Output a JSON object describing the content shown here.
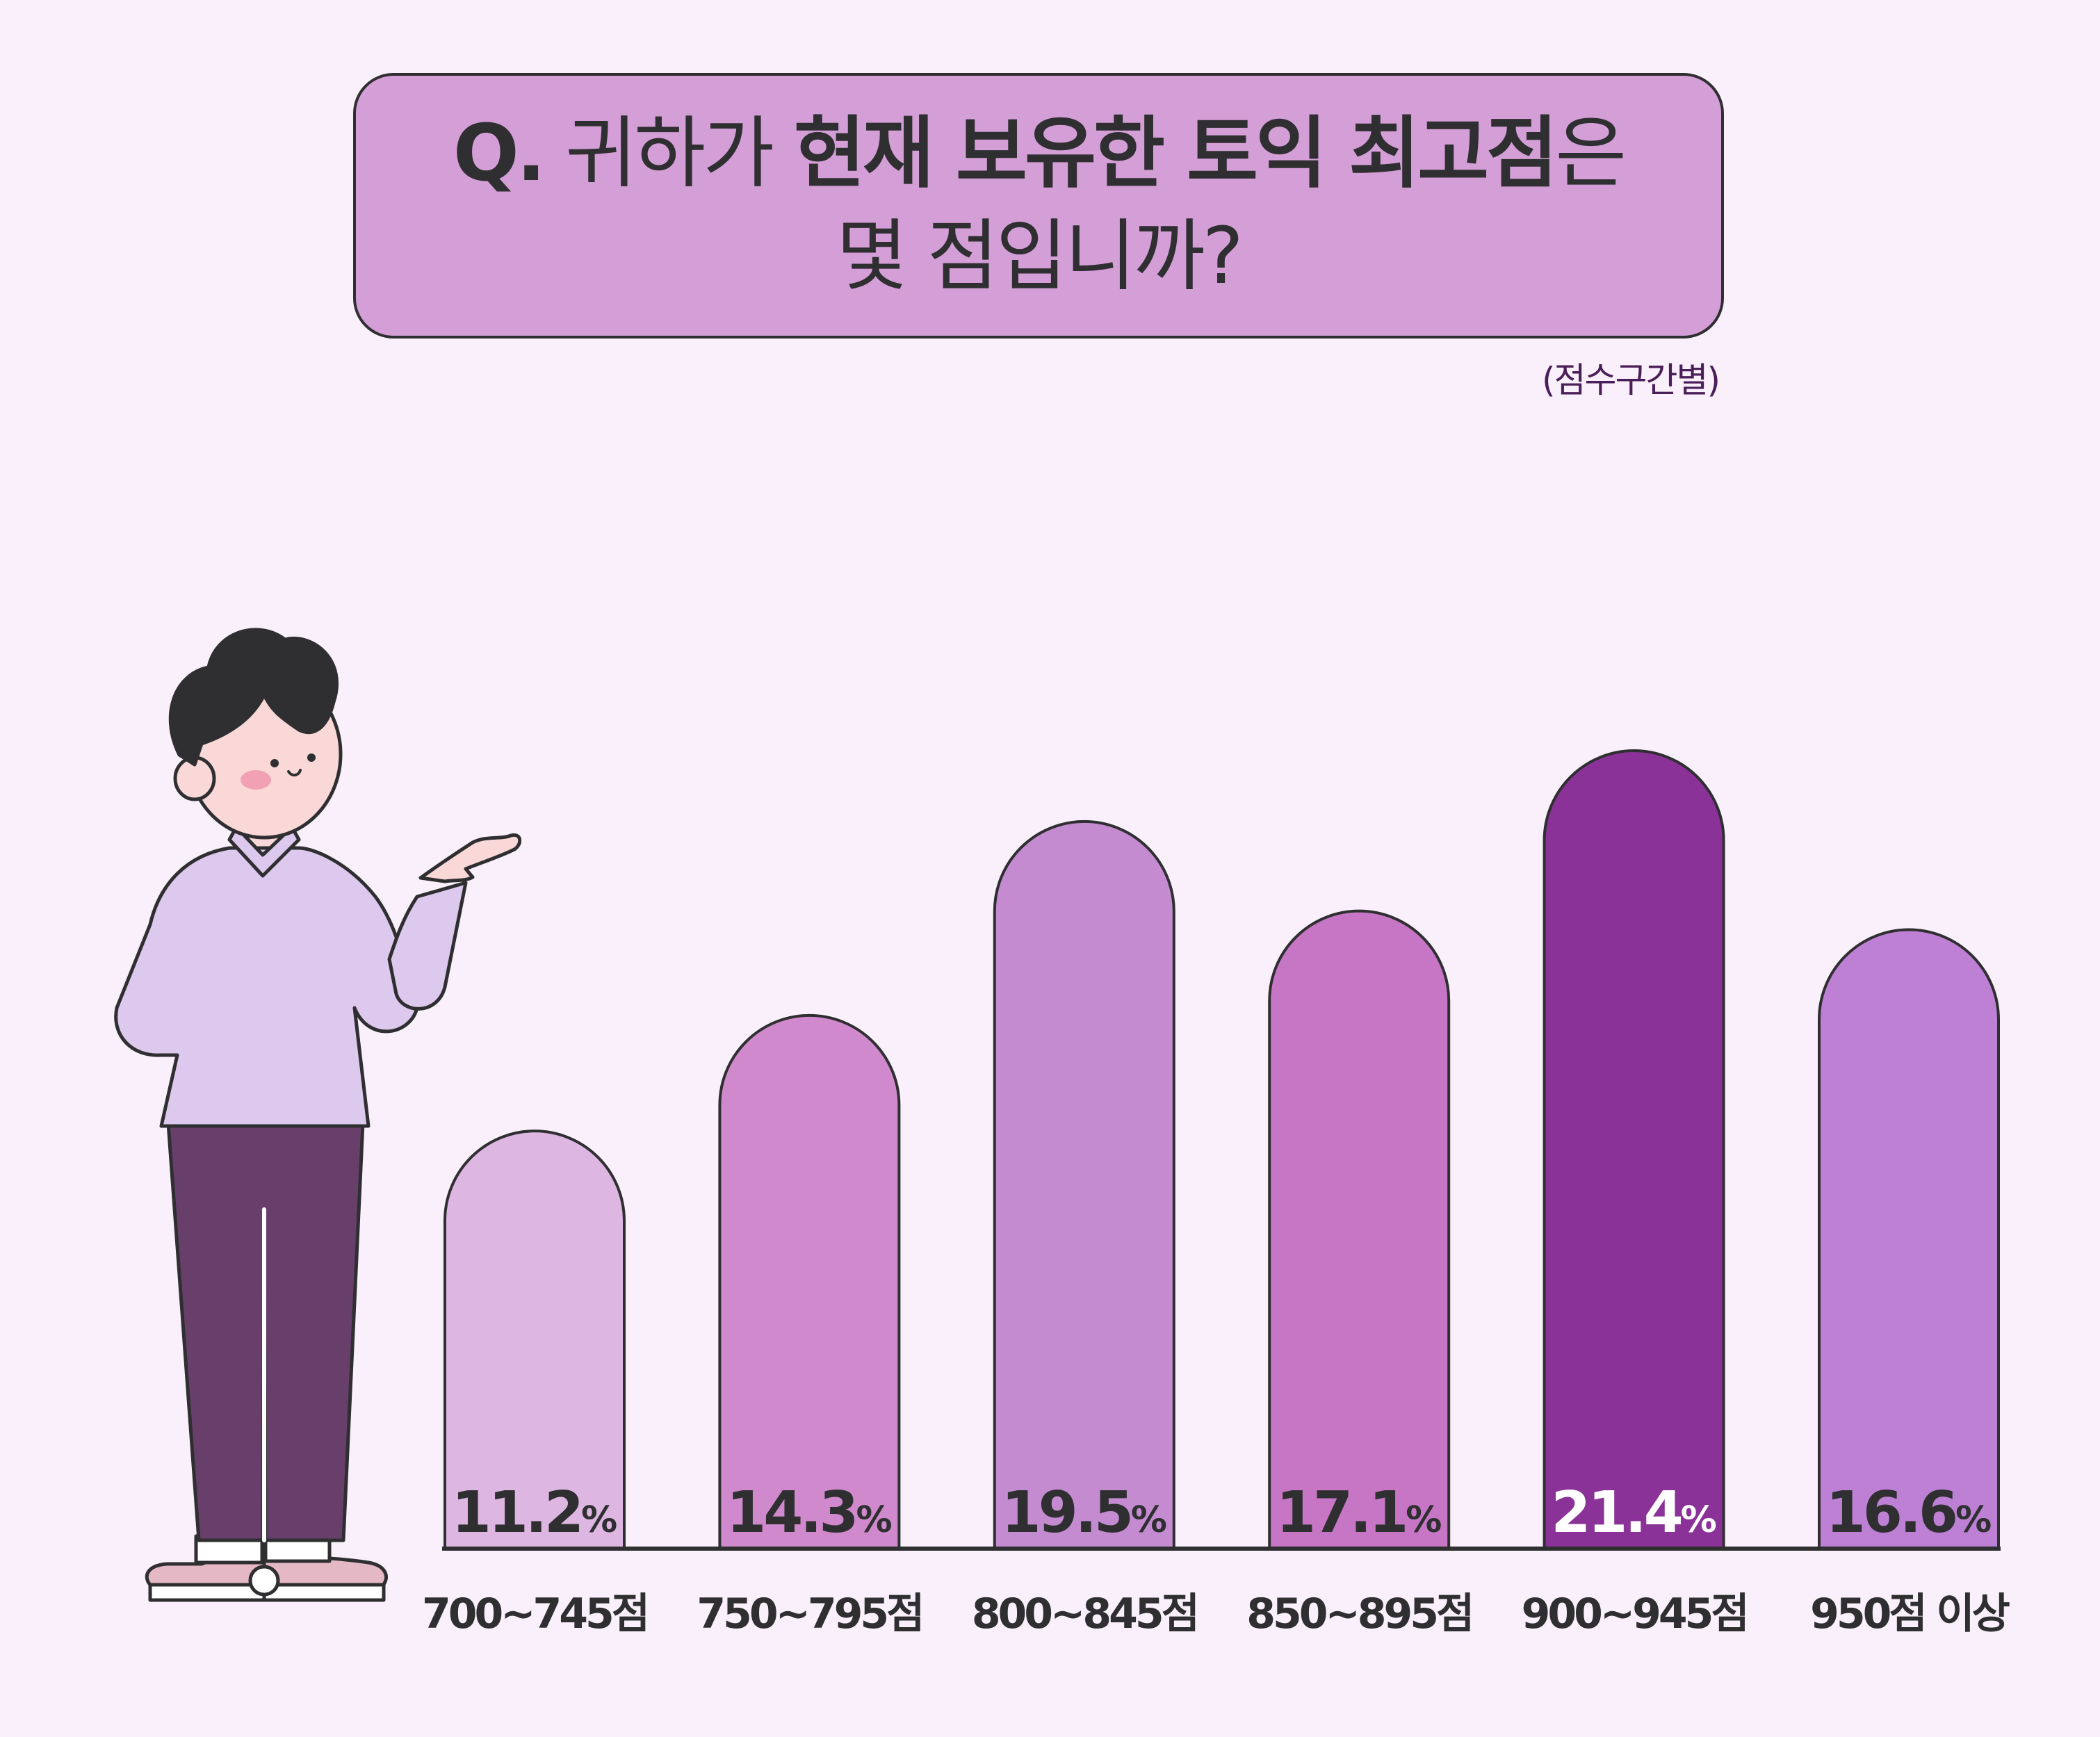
{
  "header": {
    "q_mark": "Q.",
    "line1_normal": "귀하가 ",
    "line1_bold": "현재 보유한 토익 최고점",
    "line1_suffix": "은",
    "line2": "몇 점입니까?"
  },
  "subtitle": "(점수구간별)",
  "colors": {
    "background": "#FAF0FB",
    "title_box": "#D49ED7",
    "outline": "#2F2F31",
    "highlight_bar": "#8A3297"
  },
  "chart_data": {
    "type": "bar",
    "title": "Q. 귀하가 현재 보유한 토익 최고점은 몇 점입니까?",
    "subtitle": "(점수구간별)",
    "categories": [
      "700~745점",
      "750~795점",
      "800~845점",
      "850~895점",
      "900~945점",
      "950점 이상"
    ],
    "values": [
      11.2,
      14.3,
      19.5,
      17.1,
      21.4,
      16.6
    ],
    "value_labels": [
      "11.2",
      "14.3",
      "19.5",
      "17.1",
      "21.4",
      "16.6"
    ],
    "unit": "%",
    "bar_colors": [
      "#DEB6E2",
      "#CF89CC",
      "#C58BD1",
      "#C776C5",
      "#8A3297",
      "#BD80D4"
    ],
    "label_colors": [
      "#2F2F31",
      "#2F2F31",
      "#2F2F31",
      "#2F2F31",
      "#FFFFFF",
      "#2F2F31"
    ],
    "grid": false,
    "legend": "none"
  }
}
